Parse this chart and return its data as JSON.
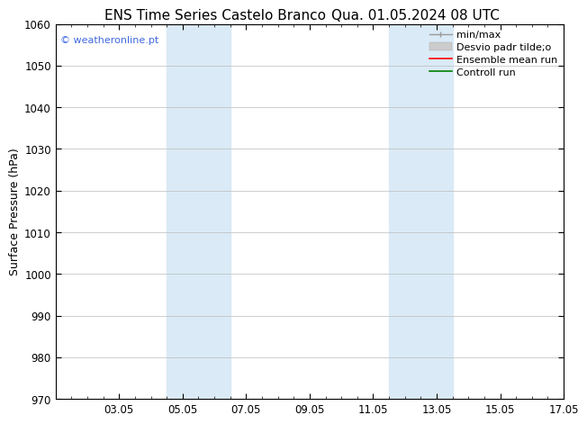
{
  "title_left": "ENS Time Series Castelo Branco",
  "title_right": "Qua. 01.05.2024 08 UTC",
  "ylabel": "Surface Pressure (hPa)",
  "ylim": [
    970,
    1060
  ],
  "yticks": [
    970,
    980,
    990,
    1000,
    1010,
    1020,
    1030,
    1040,
    1050,
    1060
  ],
  "xlim": [
    0,
    16
  ],
  "xtick_labels": [
    "03.05",
    "05.05",
    "07.05",
    "09.05",
    "11.05",
    "13.05",
    "15.05",
    "17.05"
  ],
  "xtick_positions": [
    2,
    4,
    6,
    8,
    10,
    12,
    14,
    16
  ],
  "shaded_bands": [
    {
      "x_start": 3.5,
      "x_end": 5.5,
      "color": "#daeaf6"
    },
    {
      "x_start": 10.5,
      "x_end": 12.5,
      "color": "#daeaf6"
    }
  ],
  "watermark": "© weatheronline.pt",
  "watermark_color": "#4169E1",
  "legend_labels": [
    "min/max",
    "Desvio padr tilde;o",
    "Ensemble mean run",
    "Controll run"
  ],
  "legend_colors": [
    "#999999",
    "#cccccc",
    "red",
    "green"
  ],
  "background_color": "#ffffff",
  "plot_bg_color": "#ffffff",
  "grid_color": "#bbbbbb",
  "title_fontsize": 11,
  "ylabel_fontsize": 9,
  "tick_fontsize": 8.5,
  "legend_fontsize": 8,
  "watermark_fontsize": 8
}
